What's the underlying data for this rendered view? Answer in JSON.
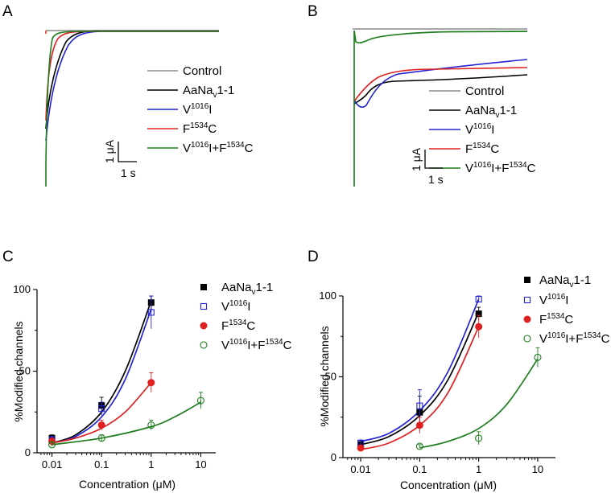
{
  "panels": {
    "A": {
      "letter": "A"
    },
    "B": {
      "letter": "B"
    },
    "C": {
      "letter": "C"
    },
    "D": {
      "letter": "D"
    }
  },
  "legend": {
    "control": "Control",
    "wt_base": "AaNa",
    "wt_sub": "v",
    "wt_tail": "1-1",
    "v1016i_pre": "V",
    "v1016i_sup": "1016",
    "v1016i_post": "I",
    "f1534c_pre": "F",
    "f1534c_sup": "1534",
    "f1534c_post": "C",
    "double_a": "V",
    "double_sup1": "1016",
    "double_mid": "I+F",
    "double_sup2": "1534",
    "double_post": "C"
  },
  "scale_bar": {
    "current": "1 μA",
    "time": "1 s"
  },
  "colors": {
    "control": "#8c8c8c",
    "wt": "#000000",
    "v1016i": "#2323d4",
    "f1534c": "#e02020",
    "double": "#1e7d1e"
  },
  "chart_data": [
    {
      "id": "C",
      "type": "scatter",
      "xscale": "log",
      "xlim": [
        0.005,
        20
      ],
      "ylim": [
        0,
        100
      ],
      "xticks": [
        "0.01",
        "0.1",
        "1",
        "10"
      ],
      "xtick_values": [
        0.01,
        0.1,
        1,
        10
      ],
      "yticks": [
        "0",
        "50",
        "100"
      ],
      "ytick_values": [
        0,
        50,
        100
      ],
      "xlabel": "Concentration (μM)",
      "ylabel": "%Modified channels",
      "series": [
        {
          "key": "wt",
          "marker": "filled-square",
          "x": [
            0.01,
            0.1,
            1
          ],
          "y": [
            9,
            29,
            92
          ],
          "err": [
            2,
            5,
            4
          ],
          "fit": [
            [
              0.01,
              6
            ],
            [
              0.03,
              11
            ],
            [
              0.1,
              25
            ],
            [
              0.3,
              50
            ],
            [
              1,
              93
            ]
          ]
        },
        {
          "key": "v1016i",
          "marker": "open-square",
          "x": [
            0.01,
            0.1,
            1
          ],
          "y": [
            8,
            27,
            86
          ],
          "err": [
            2,
            4,
            10
          ],
          "fit": [
            [
              0.01,
              6
            ],
            [
              0.03,
              10
            ],
            [
              0.1,
              22
            ],
            [
              0.3,
              45
            ],
            [
              1,
              88
            ]
          ]
        },
        {
          "key": "f1534c",
          "marker": "filled-circle",
          "x": [
            0.01,
            0.1,
            1
          ],
          "y": [
            7,
            17,
            43
          ],
          "err": [
            2,
            3,
            6
          ],
          "fit": [
            [
              0.01,
              6
            ],
            [
              0.03,
              9
            ],
            [
              0.1,
              15
            ],
            [
              0.3,
              25
            ],
            [
              1,
              43
            ]
          ]
        },
        {
          "key": "double",
          "marker": "open-circle",
          "x": [
            0.01,
            0.1,
            1,
            10
          ],
          "y": [
            5,
            9,
            17,
            32
          ],
          "err": [
            1,
            2,
            3,
            5
          ],
          "fit": [
            [
              0.01,
              5
            ],
            [
              0.1,
              9
            ],
            [
              1,
              16
            ],
            [
              3,
              22
            ],
            [
              10,
              31
            ]
          ]
        }
      ]
    },
    {
      "id": "D",
      "type": "scatter",
      "xscale": "log",
      "xlim": [
        0.005,
        20
      ],
      "ylim": [
        0,
        100
      ],
      "xticks": [
        "0.01",
        "0.1",
        "1",
        "10"
      ],
      "xtick_values": [
        0.01,
        0.1,
        1,
        10
      ],
      "yticks": [
        "0",
        "50",
        "100"
      ],
      "ytick_values": [
        0,
        50,
        100
      ],
      "xlabel": "Concentration (μM)",
      "ylabel": "%Modified channels",
      "series": [
        {
          "key": "wt",
          "marker": "filled-square",
          "x": [
            0.01,
            0.1,
            1
          ],
          "y": [
            8,
            28,
            89
          ],
          "err": [
            2,
            10,
            4
          ],
          "fit": [
            [
              0.01,
              8
            ],
            [
              0.03,
              13
            ],
            [
              0.1,
              26
            ],
            [
              0.3,
              48
            ],
            [
              1,
              90
            ]
          ]
        },
        {
          "key": "v1016i",
          "marker": "open-square",
          "x": [
            0.01,
            0.1,
            1
          ],
          "y": [
            9,
            32,
            98
          ],
          "err": [
            2,
            10,
            2
          ],
          "fit": [
            [
              0.01,
              10
            ],
            [
              0.03,
              15
            ],
            [
              0.1,
              29
            ],
            [
              0.3,
              53
            ],
            [
              1,
              98
            ]
          ]
        },
        {
          "key": "f1534c",
          "marker": "filled-circle",
          "x": [
            0.01,
            0.1,
            1
          ],
          "y": [
            6,
            20,
            81
          ],
          "err": [
            1,
            5,
            7
          ],
          "fit": [
            [
              0.01,
              5
            ],
            [
              0.03,
              9
            ],
            [
              0.1,
              20
            ],
            [
              0.3,
              40
            ],
            [
              1,
              81
            ]
          ]
        },
        {
          "key": "double",
          "marker": "open-circle",
          "x": [
            0.1,
            1,
            10
          ],
          "y": [
            7,
            12,
            62
          ],
          "err": [
            1,
            4,
            6
          ],
          "fit": [
            [
              0.1,
              6
            ],
            [
              0.3,
              10
            ],
            [
              1,
              18
            ],
            [
              3,
              33
            ],
            [
              10,
              61
            ]
          ]
        }
      ]
    }
  ]
}
